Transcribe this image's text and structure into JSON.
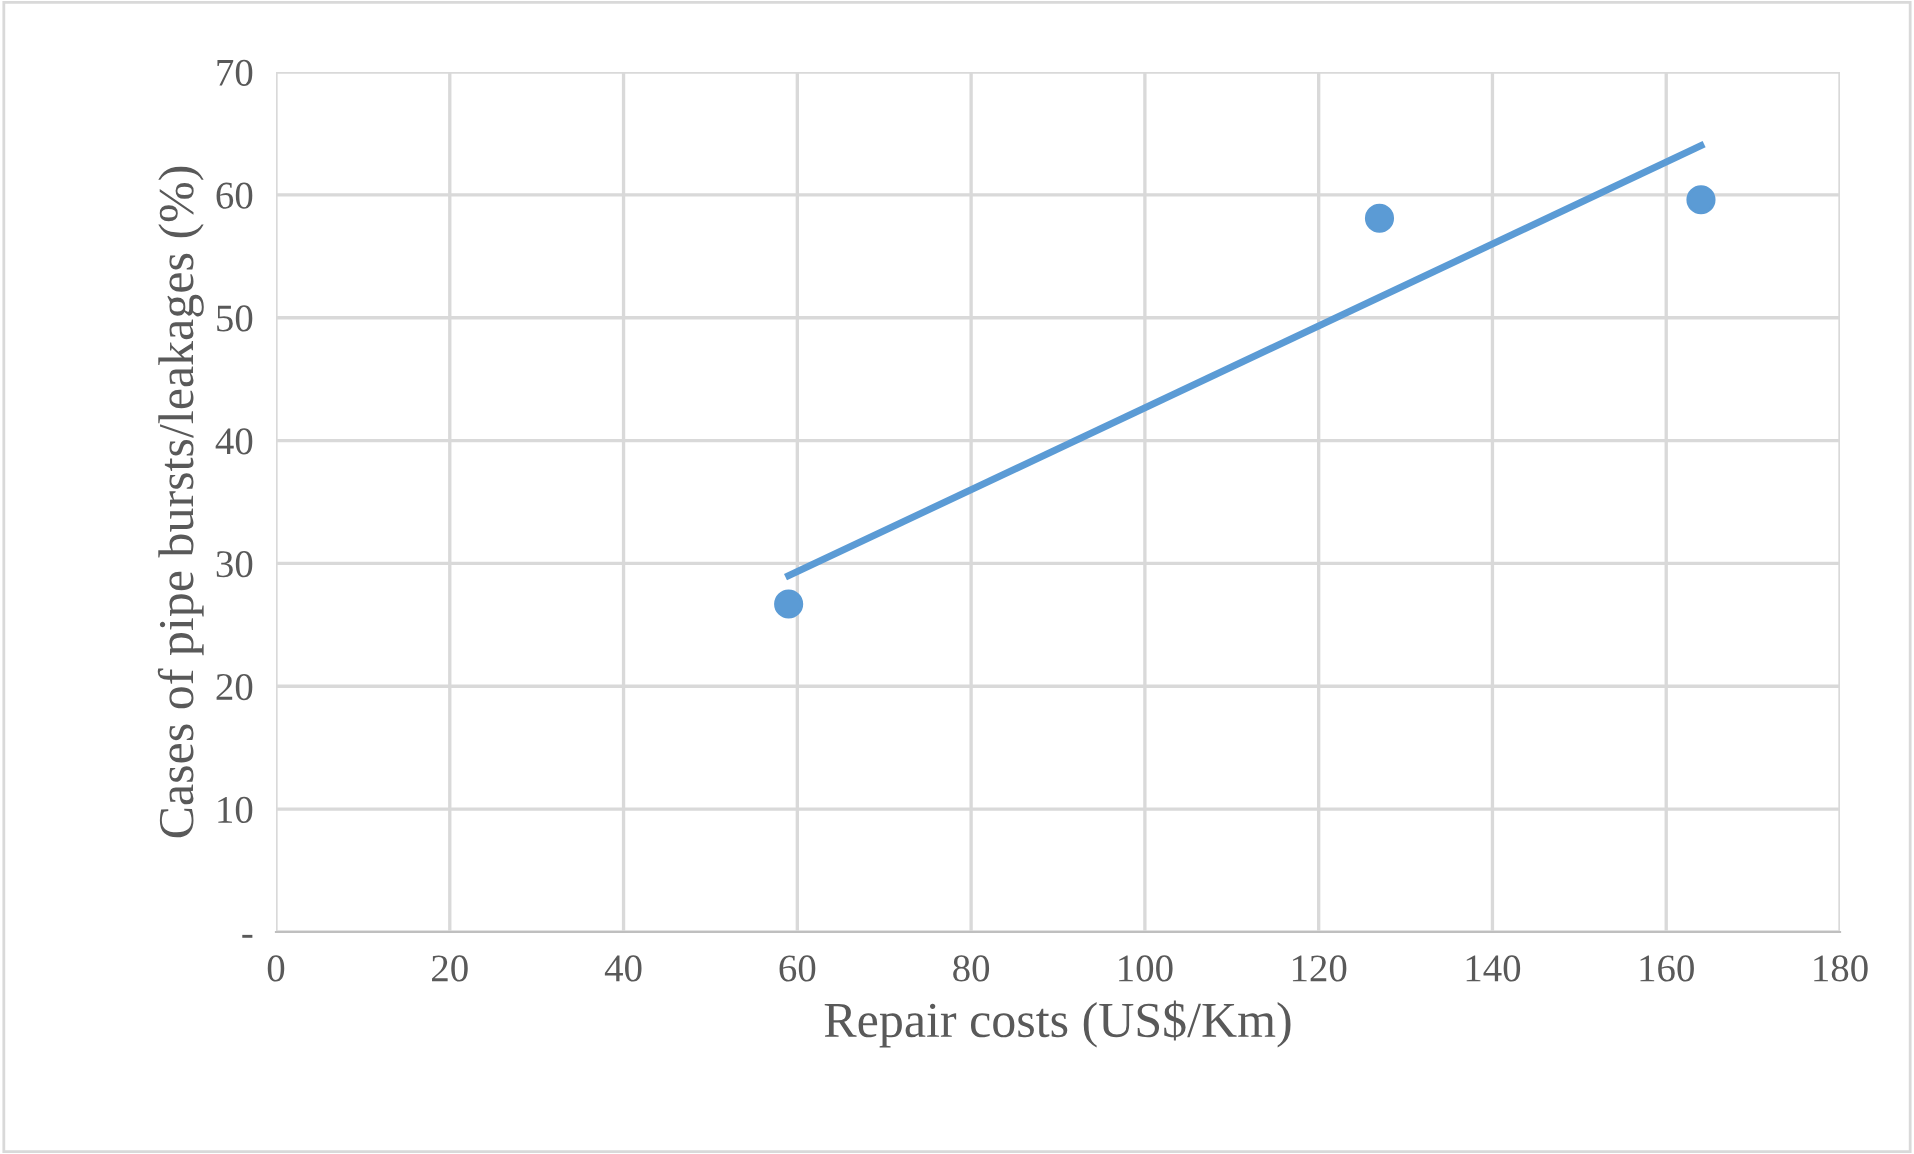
{
  "chart_data": {
    "type": "scatter",
    "xlabel": "Repair costs (US$/Km)",
    "ylabel": "Cases of pipe bursts/leakages (%)",
    "series": [
      {
        "color": "#5b9bd5",
        "x": [
          59,
          127,
          164
        ],
        "values": [
          26.7,
          58.1,
          59.6
        ],
        "marker": "circle"
      },
      {
        "type": "line",
        "color": "#5b9bd5",
        "x": [
          59,
          164
        ],
        "values": [
          29.0,
          64.0
        ],
        "marker": "none",
        "line_style": "solid"
      }
    ],
    "xlim": [
      0,
      180
    ],
    "xticks": [
      0,
      20,
      40,
      60,
      80,
      100,
      120,
      140,
      160,
      180
    ],
    "ylim": [
      0,
      70
    ],
    "yticks": [
      {
        "value": 0,
        "label": "-"
      },
      10,
      20,
      30,
      40,
      50,
      60,
      70
    ],
    "grid": true
  }
}
